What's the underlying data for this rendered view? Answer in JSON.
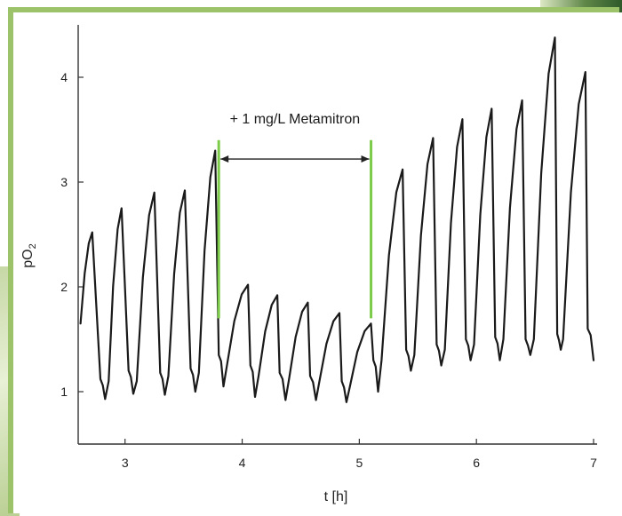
{
  "chart_data": {
    "type": "line",
    "xlabel": "t [h]",
    "ylabel": "pO",
    "ylabel_sub": "2",
    "xlim": [
      2.6,
      7.0
    ],
    "ylim": [
      0.5,
      4.5
    ],
    "x_ticks": [
      3,
      4,
      5,
      6,
      7
    ],
    "y_ticks": [
      1,
      2,
      3,
      4
    ],
    "grid": false,
    "line_color": "#1a1a1a",
    "marker_color": "#7ccc4a",
    "annotation": {
      "text": "+ 1 mg/L Metamitron",
      "x_start": 3.8,
      "x_end": 5.1,
      "y": 3.22,
      "marker_y_low": 1.7,
      "marker_y_high": 3.4
    },
    "cycles": [
      {
        "rise_start": 2.62,
        "min": 1.65,
        "peak_x": 2.72,
        "peak": 2.52,
        "drop_x": 2.79,
        "floor": 1.12,
        "dip_x": 2.83,
        "dip": 0.93
      },
      {
        "rise_start": 2.86,
        "min": 1.1,
        "peak_x": 2.97,
        "peak": 2.75,
        "drop_x": 3.03,
        "floor": 1.2,
        "dip_x": 3.07,
        "dip": 0.98
      },
      {
        "rise_start": 3.1,
        "min": 1.1,
        "peak_x": 3.25,
        "peak": 2.9,
        "drop_x": 3.3,
        "floor": 1.18,
        "dip_x": 3.34,
        "dip": 0.97
      },
      {
        "rise_start": 3.37,
        "min": 1.15,
        "peak_x": 3.51,
        "peak": 2.92,
        "drop_x": 3.56,
        "floor": 1.22,
        "dip_x": 3.6,
        "dip": 1.0
      },
      {
        "rise_start": 3.63,
        "min": 1.18,
        "peak_x": 3.77,
        "peak": 3.3,
        "drop_x": 3.8,
        "floor": 1.35,
        "dip_x": 3.84,
        "dip": 1.05
      },
      {
        "rise_start": 3.87,
        "min": 1.25,
        "peak_x": 4.05,
        "peak": 2.02,
        "drop_x": 4.07,
        "floor": 1.25,
        "dip_x": 4.11,
        "dip": 0.95
      },
      {
        "rise_start": 4.14,
        "min": 1.15,
        "peak_x": 4.3,
        "peak": 1.92,
        "drop_x": 4.32,
        "floor": 1.18,
        "dip_x": 4.37,
        "dip": 0.92
      },
      {
        "rise_start": 4.4,
        "min": 1.12,
        "peak_x": 4.56,
        "peak": 1.85,
        "drop_x": 4.58,
        "floor": 1.15,
        "dip_x": 4.63,
        "dip": 0.92
      },
      {
        "rise_start": 4.66,
        "min": 1.1,
        "peak_x": 4.83,
        "peak": 1.75,
        "drop_x": 4.85,
        "floor": 1.1,
        "dip_x": 4.89,
        "dip": 0.9
      },
      {
        "rise_start": 4.92,
        "min": 1.05,
        "peak_x": 5.1,
        "peak": 1.65,
        "drop_x": 5.12,
        "floor": 1.3,
        "dip_x": 5.16,
        "dip": 1.0
      },
      {
        "rise_start": 5.19,
        "min": 1.3,
        "peak_x": 5.37,
        "peak": 3.12,
        "drop_x": 5.4,
        "floor": 1.4,
        "dip_x": 5.44,
        "dip": 1.2
      },
      {
        "rise_start": 5.47,
        "min": 1.35,
        "peak_x": 5.63,
        "peak": 3.42,
        "drop_x": 5.66,
        "floor": 1.45,
        "dip_x": 5.7,
        "dip": 1.25
      },
      {
        "rise_start": 5.73,
        "min": 1.4,
        "peak_x": 5.88,
        "peak": 3.6,
        "drop_x": 5.91,
        "floor": 1.5,
        "dip_x": 5.95,
        "dip": 1.3
      },
      {
        "rise_start": 5.98,
        "min": 1.45,
        "peak_x": 6.13,
        "peak": 3.7,
        "drop_x": 6.16,
        "floor": 1.52,
        "dip_x": 6.2,
        "dip": 1.3
      },
      {
        "rise_start": 6.23,
        "min": 1.5,
        "peak_x": 6.39,
        "peak": 3.78,
        "drop_x": 6.42,
        "floor": 1.5,
        "dip_x": 6.46,
        "dip": 1.35
      },
      {
        "rise_start": 6.49,
        "min": 1.5,
        "peak_x": 6.67,
        "peak": 4.38,
        "drop_x": 6.69,
        "floor": 1.55,
        "dip_x": 6.72,
        "dip": 1.4
      },
      {
        "rise_start": 6.74,
        "min": 1.5,
        "peak_x": 6.93,
        "peak": 4.05,
        "drop_x": 6.95,
        "floor": 1.6,
        "dip_x": 7.0,
        "dip": 1.3
      }
    ]
  }
}
